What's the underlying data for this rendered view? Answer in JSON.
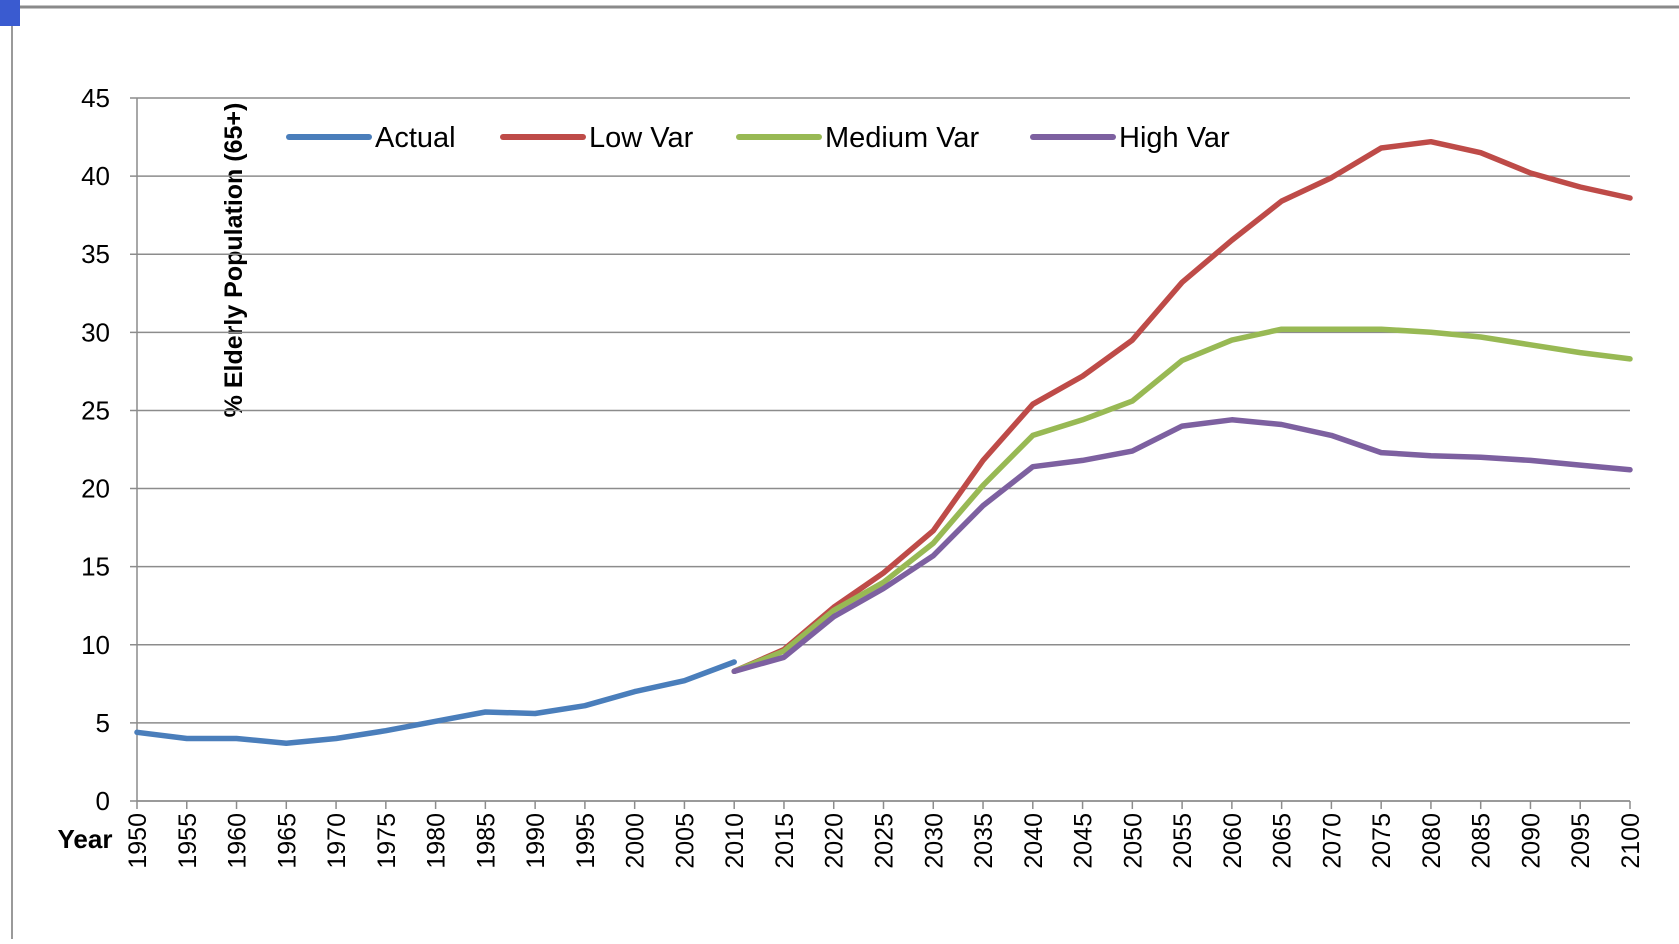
{
  "chart_data": {
    "type": "line",
    "ylabel": "% Elderly Population (65+)",
    "xlabel": "Year",
    "x": [
      1950,
      1955,
      1960,
      1965,
      1970,
      1975,
      1980,
      1985,
      1990,
      1995,
      2000,
      2005,
      2010,
      2015,
      2020,
      2025,
      2030,
      2035,
      2040,
      2045,
      2050,
      2055,
      2060,
      2065,
      2070,
      2075,
      2080,
      2085,
      2090,
      2095,
      2100
    ],
    "series": [
      {
        "name": "Actual",
        "color": "#4a7ebb",
        "values": [
          4.4,
          4.0,
          4.0,
          3.7,
          4.0,
          4.5,
          5.1,
          5.7,
          5.6,
          6.1,
          7.0,
          7.7,
          8.9,
          null,
          null,
          null,
          null,
          null,
          null,
          null,
          null,
          null,
          null,
          null,
          null,
          null,
          null,
          null,
          null,
          null,
          null
        ]
      },
      {
        "name": "Low Var",
        "color": "#be4b48",
        "values": [
          null,
          null,
          null,
          null,
          null,
          null,
          null,
          null,
          null,
          null,
          null,
          null,
          8.3,
          9.7,
          12.4,
          14.6,
          17.3,
          21.8,
          25.4,
          27.2,
          29.5,
          33.2,
          35.9,
          38.4,
          39.9,
          41.8,
          42.2,
          41.5,
          40.2,
          39.3,
          38.6
        ]
      },
      {
        "name": "Medium Var",
        "color": "#98b954",
        "values": [
          null,
          null,
          null,
          null,
          null,
          null,
          null,
          null,
          null,
          null,
          null,
          null,
          8.3,
          9.6,
          12.2,
          14.0,
          16.5,
          20.2,
          23.4,
          24.4,
          25.6,
          28.2,
          29.5,
          30.2,
          30.2,
          30.2,
          30.0,
          29.7,
          29.2,
          28.7,
          28.3
        ]
      },
      {
        "name": "High Var",
        "color": "#7d60a0",
        "values": [
          null,
          null,
          null,
          null,
          null,
          null,
          null,
          null,
          null,
          null,
          null,
          null,
          8.3,
          9.2,
          11.8,
          13.6,
          15.7,
          18.9,
          21.4,
          21.8,
          22.4,
          24.0,
          24.4,
          24.1,
          23.4,
          22.3,
          22.1,
          22.0,
          21.8,
          21.5,
          21.2
        ]
      }
    ],
    "xlim": [
      1950,
      2100
    ],
    "xticks": [
      1950,
      1955,
      1960,
      1965,
      1970,
      1975,
      1980,
      1985,
      1990,
      1995,
      2000,
      2005,
      2010,
      2015,
      2020,
      2025,
      2030,
      2035,
      2040,
      2045,
      2050,
      2055,
      2060,
      2065,
      2070,
      2075,
      2080,
      2085,
      2090,
      2095,
      2100
    ],
    "ylim": [
      0,
      45
    ],
    "yticks": [
      0,
      5,
      10,
      15,
      20,
      25,
      30,
      35,
      40,
      45
    ],
    "grid": true,
    "legend": "top"
  }
}
